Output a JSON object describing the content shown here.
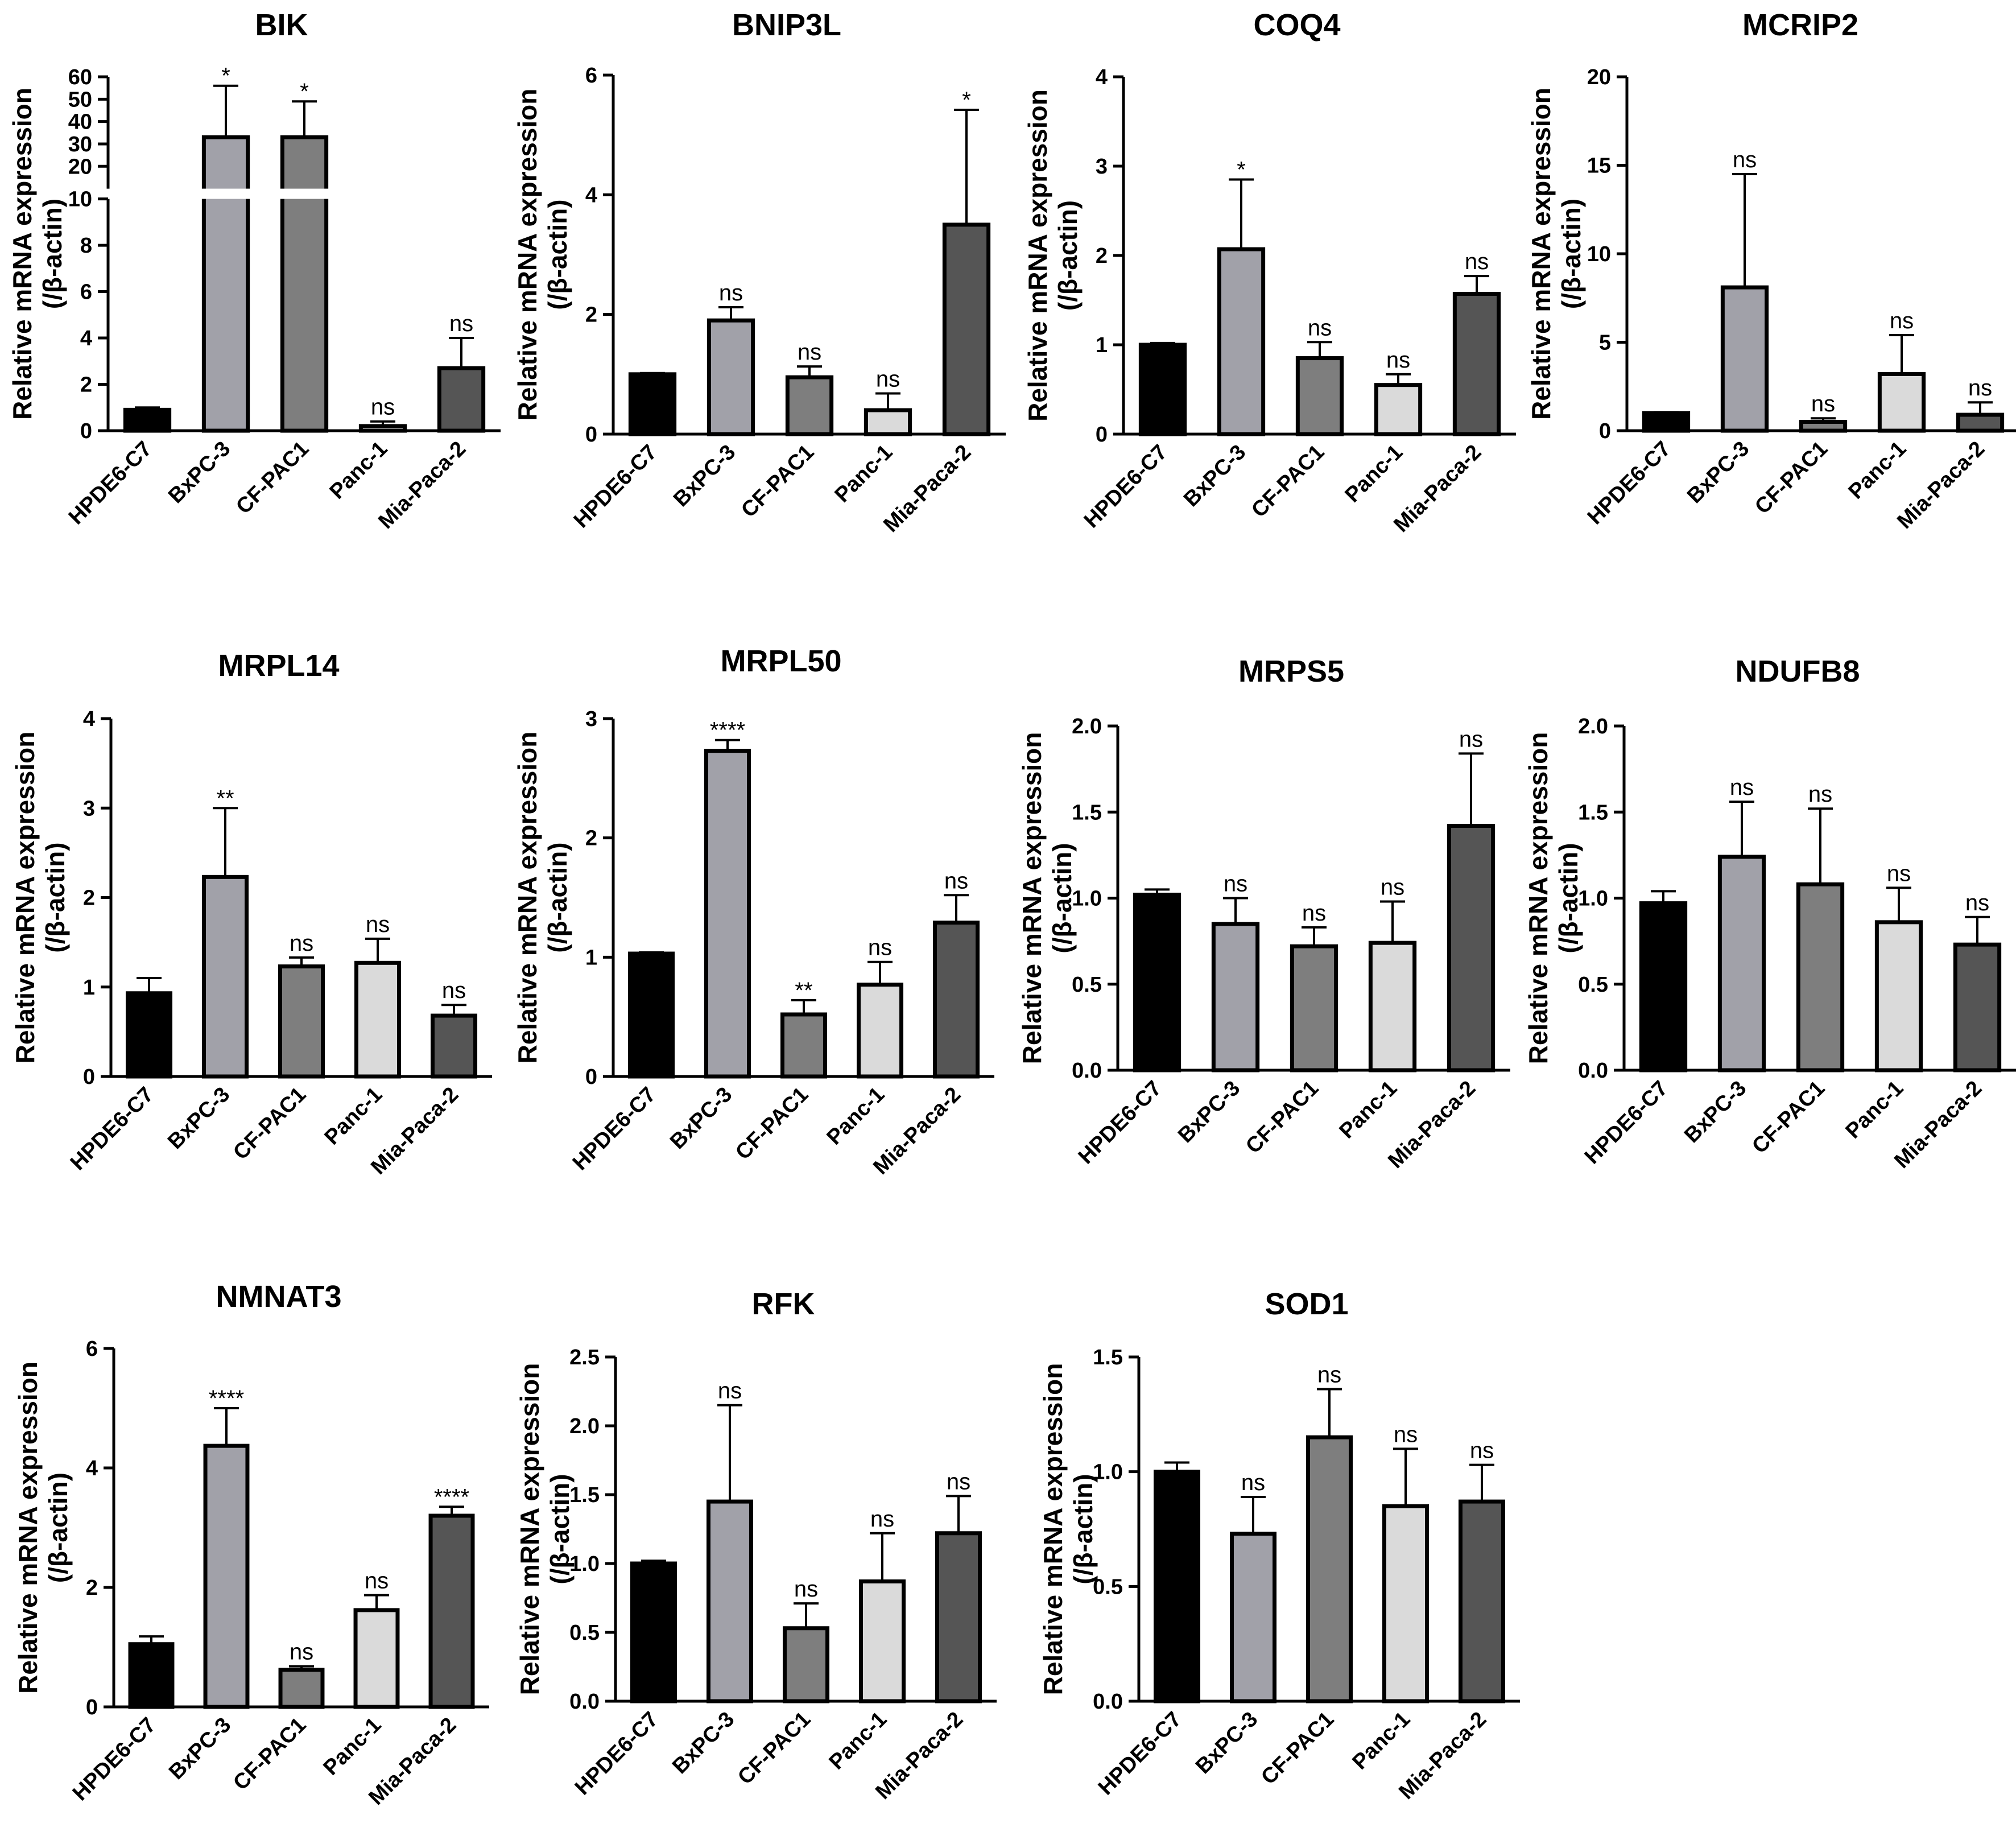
{
  "figure": {
    "group_colors": [
      "#000000",
      "#a1a1a9",
      "#7e7e7e",
      "#dadada",
      "#555555"
    ],
    "bar_stroke": "#000000"
  },
  "chart_data": [
    {
      "type": "bar",
      "title": "BIK",
      "xlabel": "",
      "ylabel_line1": "Relative mRNA expression",
      "ylabel_line2": "(/β-actin)",
      "categories": [
        "HPDE6-C7",
        "BxPC-3",
        "CF-PAC1",
        "Panc-1",
        "Mia-Paca-2"
      ],
      "values": [
        0.9,
        33,
        33,
        0.2,
        2.7
      ],
      "errors": [
        0.1,
        23,
        16,
        0.2,
        1.3
      ],
      "significance": [
        "",
        "*",
        "*",
        "ns",
        "ns"
      ],
      "broken_axis": {
        "lower": [
          0,
          10
        ],
        "upper": [
          10,
          60
        ]
      },
      "yticks": [
        0,
        2,
        4,
        6,
        8,
        10,
        20,
        30,
        40,
        50,
        60
      ]
    },
    {
      "type": "bar",
      "title": "BNIP3L",
      "xlabel": "",
      "ylabel_line1": "Relative mRNA expression",
      "ylabel_line2": "(/β-actin)",
      "categories": [
        "HPDE6-C7",
        "BxPC-3",
        "CF-PAC1",
        "Panc-1",
        "Mia-Paca-2"
      ],
      "values": [
        1.0,
        1.9,
        0.95,
        0.4,
        3.5
      ],
      "errors": [
        0.02,
        0.22,
        0.18,
        0.28,
        1.92
      ],
      "significance": [
        "",
        "ns",
        "ns",
        "ns",
        "*"
      ],
      "ylim": [
        0,
        6
      ],
      "yticks": [
        0,
        2,
        4,
        6
      ]
    },
    {
      "type": "bar",
      "title": "COQ4",
      "xlabel": "",
      "ylabel_line1": "Relative mRNA expression",
      "ylabel_line2": "(/β-actin)",
      "categories": [
        "HPDE6-C7",
        "BxPC-3",
        "CF-PAC1",
        "Panc-1",
        "Mia-Paca-2"
      ],
      "values": [
        1.0,
        2.07,
        0.85,
        0.55,
        1.57
      ],
      "errors": [
        0.02,
        0.78,
        0.18,
        0.12,
        0.2
      ],
      "significance": [
        "",
        "*",
        "ns",
        "ns",
        "ns"
      ],
      "ylim": [
        0,
        4
      ],
      "yticks": [
        0,
        1,
        2,
        3,
        4
      ]
    },
    {
      "type": "bar",
      "title": "MCRIP2",
      "xlabel": "",
      "ylabel_line1": "Relative mRNA expression",
      "ylabel_line2": "(/β-actin)",
      "categories": [
        "HPDE6-C7",
        "BxPC-3",
        "CF-PAC1",
        "Panc-1",
        "Mia-Paca-2"
      ],
      "values": [
        1.0,
        8.1,
        0.5,
        3.2,
        0.9
      ],
      "errors": [
        0.05,
        6.4,
        0.2,
        2.2,
        0.7
      ],
      "significance": [
        "",
        "ns",
        "ns",
        "ns",
        "ns"
      ],
      "ylim": [
        0,
        20
      ],
      "yticks": [
        0,
        5,
        10,
        15,
        20
      ]
    },
    {
      "type": "bar",
      "title": "MRPL14",
      "xlabel": "",
      "ylabel_line1": "Relative mRNA expression",
      "ylabel_line2": "(/β-actin)",
      "categories": [
        "HPDE6-C7",
        "BxPC-3",
        "CF-PAC1",
        "Panc-1",
        "Mia-Paca-2"
      ],
      "values": [
        0.93,
        2.23,
        1.23,
        1.27,
        0.68
      ],
      "errors": [
        0.17,
        0.77,
        0.1,
        0.27,
        0.12
      ],
      "significance": [
        "",
        "**",
        "ns",
        "ns",
        "ns"
      ],
      "ylim": [
        0,
        4
      ],
      "yticks": [
        0,
        1,
        2,
        3,
        4
      ]
    },
    {
      "type": "bar",
      "title": "MRPL50",
      "xlabel": "",
      "ylabel_line1": "Relative mRNA expression",
      "ylabel_line2": "(/β-actin)",
      "categories": [
        "HPDE6-C7",
        "BxPC-3",
        "CF-PAC1",
        "Panc-1",
        "Mia-Paca-2"
      ],
      "values": [
        1.03,
        2.73,
        0.52,
        0.77,
        1.29
      ],
      "errors": [
        0.01,
        0.09,
        0.12,
        0.19,
        0.23
      ],
      "significance": [
        "",
        "****",
        "**",
        "ns",
        "ns"
      ],
      "ylim": [
        0,
        3
      ],
      "yticks": [
        0,
        1,
        2,
        3
      ]
    },
    {
      "type": "bar",
      "title": "MRPS5",
      "xlabel": "",
      "ylabel_line1": "Relative mRNA expression",
      "ylabel_line2": "(/β-actin)",
      "categories": [
        "HPDE6-C7",
        "BxPC-3",
        "CF-PAC1",
        "Panc-1",
        "Mia-Paca-2"
      ],
      "values": [
        1.02,
        0.85,
        0.72,
        0.74,
        1.42
      ],
      "errors": [
        0.03,
        0.15,
        0.11,
        0.24,
        0.42
      ],
      "significance": [
        "",
        "ns",
        "ns",
        "ns",
        "ns"
      ],
      "ylim": [
        0,
        2.0
      ],
      "yticks": [
        0.0,
        0.5,
        1.0,
        1.5,
        2.0
      ],
      "ytick_decimals": 1
    },
    {
      "type": "bar",
      "title": "NDUFB8",
      "xlabel": "",
      "ylabel_line1": "Relative mRNA expression",
      "ylabel_line2": "(/β-actin)",
      "categories": [
        "HPDE6-C7",
        "BxPC-3",
        "CF-PAC1",
        "Panc-1",
        "Mia-Paca-2"
      ],
      "values": [
        0.97,
        1.24,
        1.08,
        0.86,
        0.73
      ],
      "errors": [
        0.07,
        0.32,
        0.44,
        0.2,
        0.16
      ],
      "significance": [
        "",
        "ns",
        "ns",
        "ns",
        "ns"
      ],
      "ylim": [
        0,
        2.0
      ],
      "yticks": [
        0.0,
        0.5,
        1.0,
        1.5,
        2.0
      ],
      "ytick_decimals": 1
    },
    {
      "type": "bar",
      "title": "NMNAT3",
      "xlabel": "",
      "ylabel_line1": "Relative mRNA expression",
      "ylabel_line2": "(/β-actin)",
      "categories": [
        "HPDE6-C7",
        "BxPC-3",
        "CF-PAC1",
        "Panc-1",
        "Mia-Paca-2"
      ],
      "values": [
        1.05,
        4.37,
        0.62,
        1.62,
        3.2
      ],
      "errors": [
        0.13,
        0.63,
        0.06,
        0.25,
        0.15
      ],
      "significance": [
        "",
        "****",
        "ns",
        "ns",
        "****"
      ],
      "ylim": [
        0,
        6
      ],
      "yticks": [
        0,
        2,
        4,
        6
      ]
    },
    {
      "type": "bar",
      "title": "RFK",
      "xlabel": "",
      "ylabel_line1": "Relative mRNA expression",
      "ylabel_line2": "(/β-actin)",
      "categories": [
        "HPDE6-C7",
        "BxPC-3",
        "CF-PAC1",
        "Panc-1",
        "Mia-Paca-2"
      ],
      "values": [
        1.0,
        1.45,
        0.53,
        0.87,
        1.22
      ],
      "errors": [
        0.02,
        0.7,
        0.18,
        0.35,
        0.27
      ],
      "significance": [
        "",
        "ns",
        "ns",
        "ns",
        "ns"
      ],
      "ylim": [
        0,
        2.5
      ],
      "yticks": [
        0.0,
        0.5,
        1.0,
        1.5,
        2.0,
        2.5
      ],
      "ytick_decimals": 1
    },
    {
      "type": "bar",
      "title": "SOD1",
      "xlabel": "",
      "ylabel_line1": "Relative mRNA expression",
      "ylabel_line2": "(/β-actin)",
      "categories": [
        "HPDE6-C7",
        "BxPC-3",
        "CF-PAC1",
        "Panc-1",
        "Mia-Paca-2"
      ],
      "values": [
        1.0,
        0.73,
        1.15,
        0.85,
        0.87
      ],
      "errors": [
        0.04,
        0.16,
        0.21,
        0.25,
        0.16
      ],
      "significance": [
        "",
        "ns",
        "ns",
        "ns",
        "ns"
      ],
      "ylim": [
        0,
        1.5
      ],
      "yticks": [
        0.0,
        0.5,
        1.0,
        1.5
      ],
      "ytick_decimals": 1
    }
  ]
}
